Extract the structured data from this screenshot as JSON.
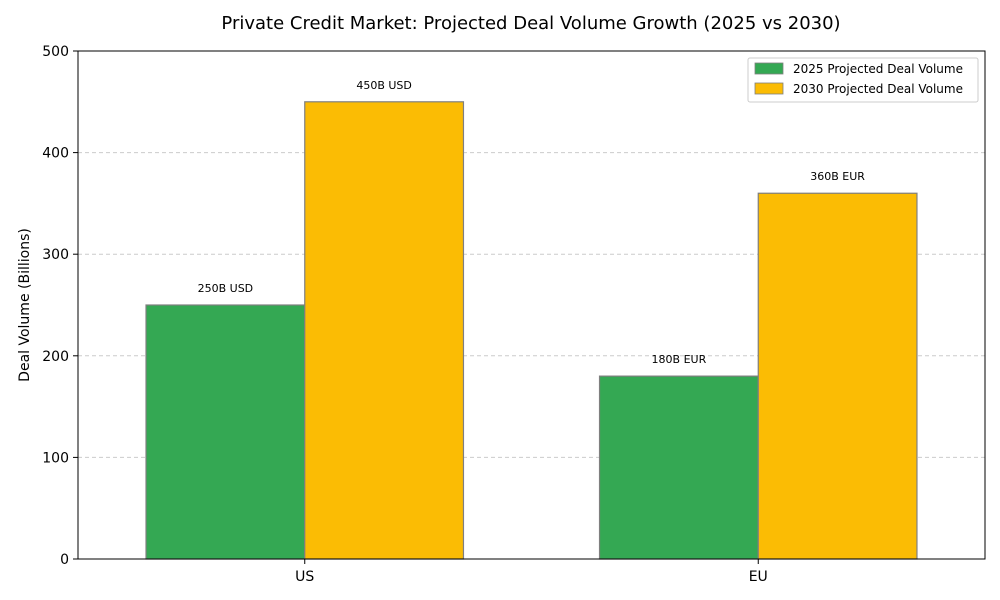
{
  "chart_data": {
    "type": "bar",
    "title": "Private Credit Market: Projected Deal Volume Growth (2025 vs 2030)",
    "xlabel": "",
    "ylabel": "Deal Volume (Billions)",
    "ylim": [
      0,
      500
    ],
    "yticks": [
      0,
      100,
      200,
      300,
      400,
      500
    ],
    "grid": "y-dashed",
    "legend_position": "top-right",
    "categories": [
      "US",
      "EU"
    ],
    "series": [
      {
        "name": "2025 Projected Deal Volume",
        "color": "#34a853",
        "values": [
          250,
          180
        ],
        "labels": [
          "250B USD",
          "180B EUR"
        ]
      },
      {
        "name": "2030 Projected Deal Volume",
        "color": "#fbbc04",
        "values": [
          450,
          360
        ],
        "labels": [
          "450B USD",
          "360B EUR"
        ]
      }
    ]
  }
}
